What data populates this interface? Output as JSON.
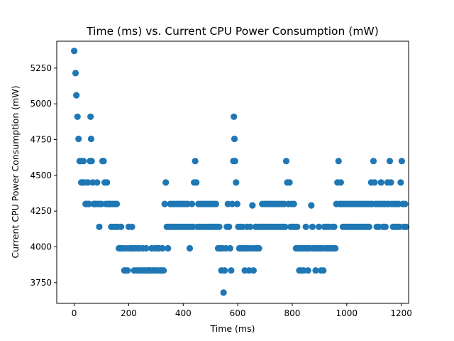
{
  "chart_data": {
    "type": "scatter",
    "title": "Time (ms) vs. Current CPU Power Consumption (mW)",
    "xlabel": "Time (ms)",
    "ylabel": "Current CPU Power Consumption (mW)",
    "xlim": [
      -64,
      1227
    ],
    "ylim": [
      3605,
      5438
    ],
    "xticks": [
      0,
      200,
      400,
      600,
      800,
      1000,
      1200
    ],
    "yticks": [
      3750,
      4000,
      4250,
      4500,
      4750,
      5000,
      5250
    ],
    "grid": false,
    "color": "#1f77b4",
    "points": [
      [
        0,
        5370
      ],
      [
        5,
        5215
      ],
      [
        8,
        5060
      ],
      [
        12,
        4910
      ],
      [
        16,
        4755
      ],
      [
        20,
        4600
      ],
      [
        24,
        4600
      ],
      [
        26,
        4450
      ],
      [
        30,
        4450
      ],
      [
        34,
        4600
      ],
      [
        38,
        4450
      ],
      [
        42,
        4300
      ],
      [
        46,
        4300
      ],
      [
        50,
        4450
      ],
      [
        54,
        4300
      ],
      [
        58,
        4600
      ],
      [
        60,
        4910
      ],
      [
        62,
        4755
      ],
      [
        64,
        4600
      ],
      [
        68,
        4450
      ],
      [
        72,
        4300
      ],
      [
        76,
        4300
      ],
      [
        80,
        4300
      ],
      [
        84,
        4450
      ],
      [
        88,
        4300
      ],
      [
        92,
        4140
      ],
      [
        96,
        4300
      ],
      [
        100,
        4300
      ],
      [
        104,
        4600
      ],
      [
        108,
        4600
      ],
      [
        112,
        4450
      ],
      [
        116,
        4300
      ],
      [
        120,
        4450
      ],
      [
        124,
        4300
      ],
      [
        128,
        4300
      ],
      [
        132,
        4300
      ],
      [
        136,
        4140
      ],
      [
        140,
        4300
      ],
      [
        144,
        4140
      ],
      [
        148,
        4300
      ],
      [
        152,
        4140
      ],
      [
        156,
        4300
      ],
      [
        160,
        4140
      ],
      [
        164,
        3990
      ],
      [
        168,
        3990
      ],
      [
        172,
        4140
      ],
      [
        176,
        3990
      ],
      [
        180,
        3990
      ],
      [
        184,
        3835
      ],
      [
        188,
        3835
      ],
      [
        192,
        3990
      ],
      [
        196,
        3835
      ],
      [
        200,
        4140
      ],
      [
        204,
        3990
      ],
      [
        208,
        3990
      ],
      [
        212,
        4140
      ],
      [
        216,
        3990
      ],
      [
        220,
        3835
      ],
      [
        224,
        3990
      ],
      [
        228,
        3835
      ],
      [
        232,
        3990
      ],
      [
        236,
        3835
      ],
      [
        240,
        3990
      ],
      [
        244,
        3835
      ],
      [
        248,
        3835
      ],
      [
        252,
        3990
      ],
      [
        256,
        3835
      ],
      [
        260,
        3835
      ],
      [
        264,
        3990
      ],
      [
        268,
        3835
      ],
      [
        272,
        3835
      ],
      [
        276,
        3835
      ],
      [
        280,
        3835
      ],
      [
        284,
        3990
      ],
      [
        288,
        3835
      ],
      [
        292,
        3835
      ],
      [
        296,
        3990
      ],
      [
        300,
        3835
      ],
      [
        304,
        3990
      ],
      [
        308,
        3835
      ],
      [
        312,
        3990
      ],
      [
        316,
        3835
      ],
      [
        320,
        3835
      ],
      [
        324,
        3990
      ],
      [
        328,
        3835
      ],
      [
        332,
        4300
      ],
      [
        336,
        4450
      ],
      [
        340,
        4140
      ],
      [
        344,
        3990
      ],
      [
        348,
        4140
      ],
      [
        352,
        4300
      ],
      [
        356,
        4140
      ],
      [
        360,
        4300
      ],
      [
        364,
        4140
      ],
      [
        368,
        4300
      ],
      [
        372,
        4140
      ],
      [
        376,
        4300
      ],
      [
        380,
        4140
      ],
      [
        384,
        4300
      ],
      [
        388,
        4140
      ],
      [
        392,
        4300
      ],
      [
        396,
        4140
      ],
      [
        400,
        4300
      ],
      [
        404,
        4140
      ],
      [
        408,
        4300
      ],
      [
        412,
        4140
      ],
      [
        416,
        4300
      ],
      [
        420,
        4140
      ],
      [
        424,
        3990
      ],
      [
        428,
        4140
      ],
      [
        432,
        4300
      ],
      [
        436,
        4140
      ],
      [
        440,
        4450
      ],
      [
        444,
        4600
      ],
      [
        448,
        4450
      ],
      [
        452,
        4140
      ],
      [
        456,
        4300
      ],
      [
        460,
        4140
      ],
      [
        464,
        4300
      ],
      [
        468,
        4140
      ],
      [
        472,
        4300
      ],
      [
        476,
        4140
      ],
      [
        480,
        4300
      ],
      [
        484,
        4140
      ],
      [
        488,
        4300
      ],
      [
        492,
        4140
      ],
      [
        496,
        4300
      ],
      [
        500,
        4140
      ],
      [
        504,
        4300
      ],
      [
        508,
        4140
      ],
      [
        512,
        4300
      ],
      [
        516,
        4140
      ],
      [
        520,
        4300
      ],
      [
        524,
        4140
      ],
      [
        528,
        3990
      ],
      [
        532,
        4140
      ],
      [
        536,
        3990
      ],
      [
        540,
        3835
      ],
      [
        544,
        3990
      ],
      [
        548,
        3680
      ],
      [
        552,
        3835
      ],
      [
        556,
        3990
      ],
      [
        560,
        4140
      ],
      [
        564,
        4300
      ],
      [
        568,
        4140
      ],
      [
        572,
        3990
      ],
      [
        576,
        3835
      ],
      [
        580,
        4300
      ],
      [
        584,
        4600
      ],
      [
        586,
        4910
      ],
      [
        588,
        4755
      ],
      [
        590,
        4600
      ],
      [
        594,
        4450
      ],
      [
        598,
        4300
      ],
      [
        602,
        4140
      ],
      [
        606,
        3990
      ],
      [
        610,
        4140
      ],
      [
        614,
        3990
      ],
      [
        618,
        4140
      ],
      [
        622,
        3990
      ],
      [
        626,
        3835
      ],
      [
        630,
        3990
      ],
      [
        634,
        4140
      ],
      [
        638,
        3990
      ],
      [
        642,
        3835
      ],
      [
        646,
        4140
      ],
      [
        650,
        3990
      ],
      [
        654,
        4290
      ],
      [
        658,
        3835
      ],
      [
        662,
        3990
      ],
      [
        666,
        4140
      ],
      [
        670,
        3990
      ],
      [
        674,
        4140
      ],
      [
        678,
        3990
      ],
      [
        682,
        4140
      ],
      [
        686,
        4140
      ],
      [
        690,
        4300
      ],
      [
        694,
        4140
      ],
      [
        698,
        4300
      ],
      [
        702,
        4140
      ],
      [
        706,
        4300
      ],
      [
        710,
        4140
      ],
      [
        714,
        4300
      ],
      [
        718,
        4140
      ],
      [
        722,
        4300
      ],
      [
        726,
        4140
      ],
      [
        730,
        4300
      ],
      [
        734,
        4140
      ],
      [
        738,
        4300
      ],
      [
        742,
        4140
      ],
      [
        746,
        4300
      ],
      [
        750,
        4140
      ],
      [
        754,
        4300
      ],
      [
        758,
        4140
      ],
      [
        762,
        4300
      ],
      [
        766,
        4140
      ],
      [
        770,
        4300
      ],
      [
        774,
        4140
      ],
      [
        778,
        4600
      ],
      [
        782,
        4450
      ],
      [
        786,
        4300
      ],
      [
        790,
        4450
      ],
      [
        794,
        4140
      ],
      [
        798,
        4300
      ],
      [
        802,
        4140
      ],
      [
        806,
        4300
      ],
      [
        810,
        4140
      ],
      [
        814,
        3990
      ],
      [
        818,
        4140
      ],
      [
        822,
        3990
      ],
      [
        826,
        3835
      ],
      [
        830,
        3990
      ],
      [
        834,
        3835
      ],
      [
        838,
        3990
      ],
      [
        842,
        3835
      ],
      [
        846,
        3990
      ],
      [
        850,
        4140
      ],
      [
        854,
        3990
      ],
      [
        858,
        3835
      ],
      [
        862,
        3990
      ],
      [
        866,
        3990
      ],
      [
        870,
        4290
      ],
      [
        874,
        4140
      ],
      [
        878,
        3990
      ],
      [
        882,
        3990
      ],
      [
        886,
        3835
      ],
      [
        890,
        3990
      ],
      [
        894,
        3990
      ],
      [
        898,
        4140
      ],
      [
        902,
        3990
      ],
      [
        906,
        3835
      ],
      [
        910,
        3990
      ],
      [
        914,
        3835
      ],
      [
        918,
        4140
      ],
      [
        922,
        3990
      ],
      [
        926,
        4140
      ],
      [
        930,
        3990
      ],
      [
        934,
        4140
      ],
      [
        938,
        3990
      ],
      [
        942,
        3990
      ],
      [
        946,
        4140
      ],
      [
        950,
        3990
      ],
      [
        954,
        4140
      ],
      [
        958,
        3990
      ],
      [
        962,
        4300
      ],
      [
        966,
        4450
      ],
      [
        970,
        4600
      ],
      [
        974,
        4300
      ],
      [
        978,
        4450
      ],
      [
        982,
        4300
      ],
      [
        986,
        4140
      ],
      [
        990,
        4300
      ],
      [
        994,
        4140
      ],
      [
        998,
        4300
      ],
      [
        1002,
        4140
      ],
      [
        1006,
        4300
      ],
      [
        1010,
        4140
      ],
      [
        1014,
        4300
      ],
      [
        1018,
        4140
      ],
      [
        1022,
        4300
      ],
      [
        1026,
        4140
      ],
      [
        1030,
        4300
      ],
      [
        1034,
        4140
      ],
      [
        1038,
        4300
      ],
      [
        1042,
        4140
      ],
      [
        1046,
        4300
      ],
      [
        1050,
        4140
      ],
      [
        1054,
        4300
      ],
      [
        1058,
        4140
      ],
      [
        1062,
        4300
      ],
      [
        1066,
        4140
      ],
      [
        1070,
        4300
      ],
      [
        1074,
        4140
      ],
      [
        1078,
        4300
      ],
      [
        1082,
        4140
      ],
      [
        1086,
        4300
      ],
      [
        1090,
        4450
      ],
      [
        1094,
        4300
      ],
      [
        1098,
        4600
      ],
      [
        1102,
        4450
      ],
      [
        1106,
        4300
      ],
      [
        1110,
        4140
      ],
      [
        1114,
        4300
      ],
      [
        1118,
        4140
      ],
      [
        1122,
        4300
      ],
      [
        1126,
        4450
      ],
      [
        1130,
        4300
      ],
      [
        1134,
        4140
      ],
      [
        1138,
        4300
      ],
      [
        1142,
        4140
      ],
      [
        1146,
        4300
      ],
      [
        1150,
        4450
      ],
      [
        1154,
        4300
      ],
      [
        1158,
        4600
      ],
      [
        1162,
        4450
      ],
      [
        1166,
        4300
      ],
      [
        1170,
        4140
      ],
      [
        1174,
        4300
      ],
      [
        1178,
        4140
      ],
      [
        1182,
        4300
      ],
      [
        1186,
        4140
      ],
      [
        1190,
        4300
      ],
      [
        1194,
        4140
      ],
      [
        1198,
        4450
      ],
      [
        1202,
        4600
      ],
      [
        1206,
        4300
      ],
      [
        1210,
        4140
      ],
      [
        1214,
        4300
      ],
      [
        1218,
        4140
      ]
    ]
  }
}
